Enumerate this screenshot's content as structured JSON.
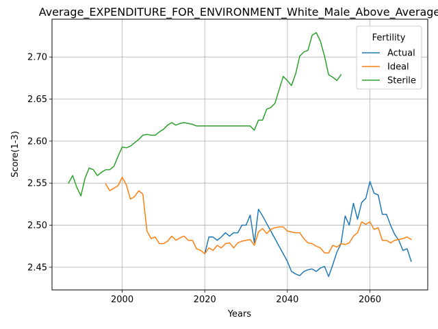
{
  "chart_data": {
    "type": "line",
    "title": "Average_EXPENDITURE_FOR_ENVIRONMENT_White_Male_Above_Average",
    "xlabel": "Years",
    "ylabel": "Score(1-3)",
    "xlim": [
      1983,
      2074
    ],
    "ylim": [
      2.423,
      2.745
    ],
    "xticks": [
      2000,
      2020,
      2040,
      2060
    ],
    "yticks": [
      2.45,
      2.5,
      2.55,
      2.6,
      2.65,
      2.7
    ],
    "ytick_labels": [
      "2.45",
      "2.50",
      "2.55",
      "2.60",
      "2.65",
      "2.70"
    ],
    "grid": true,
    "legend": {
      "title": "Fertility",
      "placement": "top-right"
    },
    "series": [
      {
        "name": "Actual",
        "color": "#1f77b4",
        "x": [
          2020,
          2021,
          2022,
          2023,
          2024,
          2025,
          2026,
          2027,
          2028,
          2029,
          2030,
          2031,
          2032,
          2033,
          2034,
          2035,
          2036,
          2037,
          2038,
          2039,
          2040,
          2041,
          2042,
          2043,
          2044,
          2045,
          2046,
          2047,
          2048,
          2049,
          2050,
          2051,
          2052,
          2053,
          2054,
          2055,
          2056,
          2057,
          2058,
          2059,
          2060,
          2061,
          2062,
          2063,
          2064,
          2065,
          2066,
          2067,
          2068,
          2069,
          2070
        ],
        "values": [
          2.466,
          2.486,
          2.486,
          2.482,
          2.486,
          2.491,
          2.487,
          2.491,
          2.491,
          2.5,
          2.5,
          2.512,
          2.479,
          2.519,
          2.511,
          2.502,
          2.493,
          2.484,
          2.475,
          2.466,
          2.457,
          2.445,
          2.442,
          2.44,
          2.445,
          2.447,
          2.448,
          2.445,
          2.449,
          2.451,
          2.439,
          2.453,
          2.468,
          2.478,
          2.511,
          2.5,
          2.526,
          2.507,
          2.527,
          2.532,
          2.552,
          2.538,
          2.536,
          2.513,
          2.513,
          2.5,
          2.489,
          2.482,
          2.47,
          2.472,
          2.457
        ]
      },
      {
        "name": "Ideal",
        "color": "#ff7f0e",
        "x": [
          1996,
          1997,
          1998,
          1999,
          2000,
          2001,
          2002,
          2003,
          2004,
          2005,
          2006,
          2007,
          2008,
          2009,
          2010,
          2011,
          2012,
          2013,
          2014,
          2015,
          2016,
          2017,
          2018,
          2019,
          2020,
          2021,
          2022,
          2023,
          2024,
          2025,
          2026,
          2027,
          2028,
          2029,
          2030,
          2031,
          2032,
          2033,
          2034,
          2035,
          2036,
          2037,
          2038,
          2039,
          2040,
          2041,
          2042,
          2043,
          2044,
          2045,
          2046,
          2047,
          2048,
          2049,
          2050,
          2051,
          2052,
          2053,
          2054,
          2055,
          2056,
          2057,
          2058,
          2059,
          2060,
          2061,
          2062,
          2063,
          2064,
          2065,
          2066,
          2067,
          2068,
          2069,
          2070
        ],
        "values": [
          2.549,
          2.541,
          2.544,
          2.547,
          2.557,
          2.548,
          2.531,
          2.534,
          2.541,
          2.537,
          2.493,
          2.484,
          2.486,
          2.478,
          2.478,
          2.481,
          2.487,
          2.482,
          2.485,
          2.487,
          2.482,
          2.482,
          2.472,
          2.47,
          2.466,
          2.473,
          2.47,
          2.476,
          2.473,
          2.478,
          2.479,
          2.473,
          2.479,
          2.481,
          2.482,
          2.483,
          2.476,
          2.492,
          2.496,
          2.49,
          2.495,
          2.497,
          2.498,
          2.498,
          2.493,
          2.492,
          2.491,
          2.491,
          2.484,
          2.479,
          2.478,
          2.475,
          2.473,
          2.467,
          2.467,
          2.476,
          2.474,
          2.478,
          2.477,
          2.479,
          2.487,
          2.491,
          2.504,
          2.501,
          2.504,
          2.495,
          2.497,
          2.482,
          2.482,
          2.479,
          2.482,
          2.483,
          2.484,
          2.486,
          2.483
        ]
      },
      {
        "name": "Sterile",
        "color": "#2ca02c",
        "x": [
          1987,
          1988,
          1989,
          1990,
          1991,
          1992,
          1993,
          1994,
          1995,
          1996,
          1997,
          1998,
          1999,
          2000,
          2001,
          2002,
          2003,
          2004,
          2005,
          2006,
          2007,
          2008,
          2009,
          2010,
          2011,
          2012,
          2013,
          2014,
          2015,
          2016,
          2017,
          2018,
          2019,
          2020,
          2021,
          2022,
          2023,
          2024,
          2025,
          2026,
          2027,
          2028,
          2029,
          2030,
          2031,
          2032,
          2033,
          2034,
          2035,
          2036,
          2037,
          2038,
          2039,
          2040,
          2041,
          2042,
          2043,
          2044,
          2045,
          2046,
          2047,
          2048,
          2049,
          2050,
          2051,
          2052,
          2053
        ],
        "values": [
          2.55,
          2.559,
          2.545,
          2.535,
          2.556,
          2.568,
          2.566,
          2.559,
          2.563,
          2.566,
          2.566,
          2.57,
          2.582,
          2.593,
          2.592,
          2.594,
          2.598,
          2.602,
          2.607,
          2.608,
          2.607,
          2.607,
          2.611,
          2.614,
          2.619,
          2.622,
          2.619,
          2.621,
          2.622,
          2.621,
          2.62,
          2.618,
          2.618,
          2.618,
          2.618,
          2.618,
          2.618,
          2.618,
          2.618,
          2.618,
          2.618,
          2.618,
          2.618,
          2.618,
          2.618,
          2.613,
          2.625,
          2.625,
          2.638,
          2.64,
          2.645,
          2.661,
          2.677,
          2.672,
          2.666,
          2.68,
          2.701,
          2.706,
          2.708,
          2.726,
          2.729,
          2.719,
          2.701,
          2.679,
          2.676,
          2.672,
          2.679
        ]
      }
    ]
  }
}
